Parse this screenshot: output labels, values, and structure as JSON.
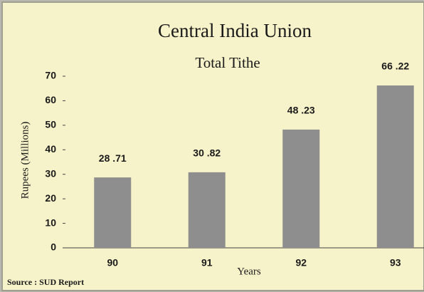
{
  "chart_data": {
    "type": "bar",
    "title": "Central India Union",
    "subtitle": "Total Tithe",
    "y_label": "Rupees (Millions)",
    "x_label": "Years",
    "categories": [
      "90",
      "91",
      "92",
      "93"
    ],
    "values": [
      28.71,
      30.82,
      48.23,
      66.22
    ],
    "value_labels": [
      "28 .71",
      "30 .82",
      "48 .23",
      "66 .22"
    ],
    "color": "#8e8e8e",
    "ylim": [
      0,
      70
    ],
    "yticks": [
      0,
      10,
      20,
      30,
      40,
      50,
      60,
      70
    ],
    "source": "Source : SUD Report"
  }
}
